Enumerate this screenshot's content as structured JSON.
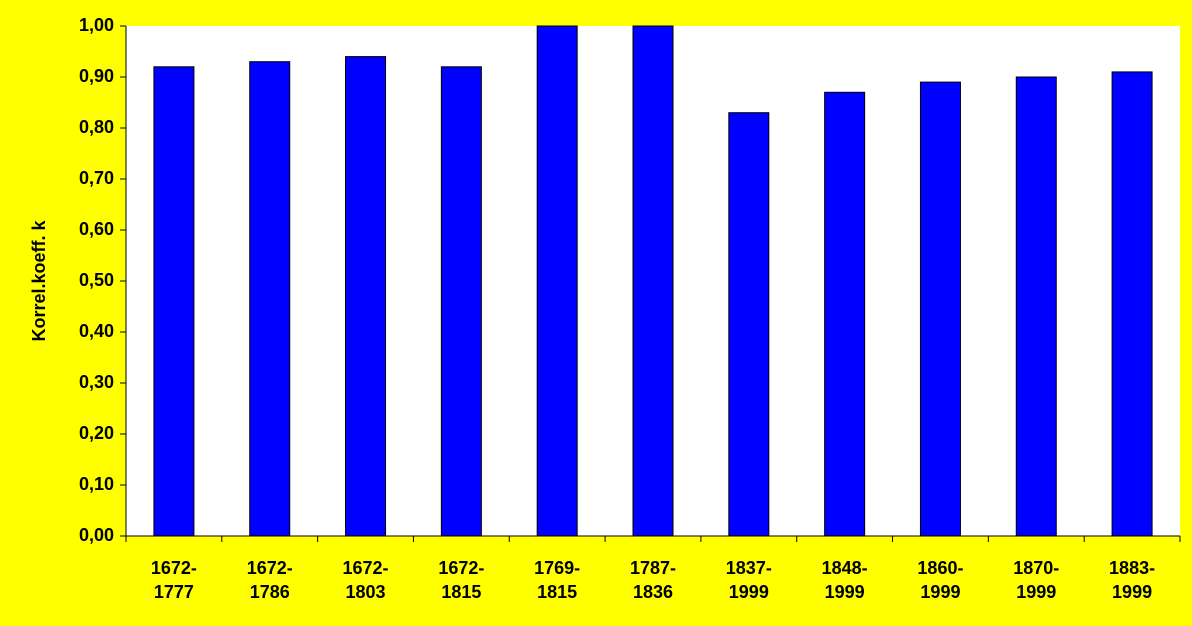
{
  "chart_data": {
    "type": "bar",
    "y_label": "Korrel.koeff. k",
    "categories": [
      "1672-\n1777",
      "1672-\n1786",
      "1672-\n1803",
      "1672-\n1815",
      "1769-\n1815",
      "1787-\n1836",
      "1837-\n1999",
      "1848-\n1999",
      "1860-\n1999",
      "1870-\n1999",
      "1883-\n1999"
    ],
    "values": [
      0.92,
      0.93,
      0.94,
      0.92,
      1.0,
      1.0,
      0.83,
      0.87,
      0.89,
      0.9,
      0.91
    ],
    "color": "#0000ff",
    "background": "#ffff00",
    "grid": false,
    "ylim": [
      0,
      1
    ],
    "yticks": [
      {
        "value": 0,
        "label": "0,00"
      },
      {
        "value": 0.1,
        "label": "0,10"
      },
      {
        "value": 0.2,
        "label": "0,20"
      },
      {
        "value": 0.3,
        "label": "0,30"
      },
      {
        "value": 0.4,
        "label": "0,40"
      },
      {
        "value": 0.5,
        "label": "0,50"
      },
      {
        "value": 0.6,
        "label": "0,60"
      },
      {
        "value": 0.7,
        "label": "0,70"
      },
      {
        "value": 0.8,
        "label": "0,80"
      },
      {
        "value": 0.9,
        "label": "0,90"
      },
      {
        "value": 1,
        "label": "1,00"
      }
    ]
  }
}
